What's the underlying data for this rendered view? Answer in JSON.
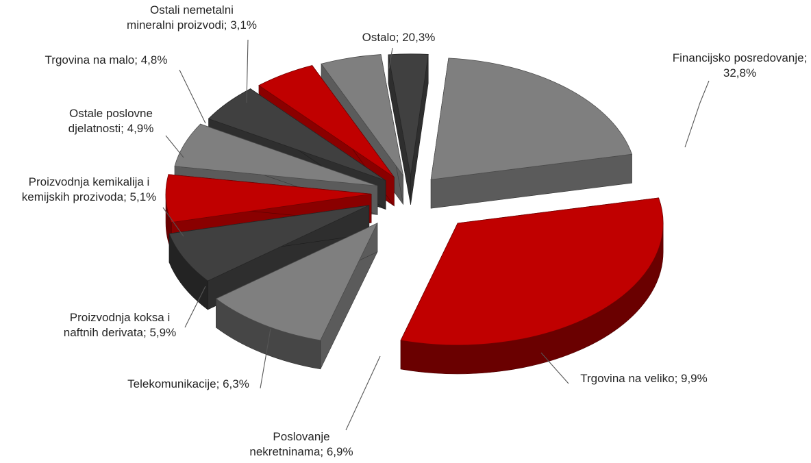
{
  "chart_data": {
    "type": "pie",
    "style": "3d-exploded",
    "title": "",
    "slices": [
      {
        "line1": "Financijsko posredovanje;",
        "line2": "32,8%",
        "value": 32.8,
        "color": "#c00000"
      },
      {
        "line1": "Trgovina na veliko; 9,9%",
        "line2": "",
        "value": 9.9,
        "color": "#7f7f7f"
      },
      {
        "line1": "Poslovanje",
        "line2": "nekretninama; 6,9%",
        "value": 6.9,
        "color": "#404040"
      },
      {
        "line1": "Telekomunikacije; 6,3%",
        "line2": "",
        "value": 6.3,
        "color": "#c00000"
      },
      {
        "line1": "Proizvodnja koksa i",
        "line2": "naftnih derivata; 5,9%",
        "value": 5.9,
        "color": "#7f7f7f"
      },
      {
        "line1": "Proizvodnja kemikalija i",
        "line2": "kemijskih prozivoda; 5,1%",
        "value": 5.1,
        "color": "#404040"
      },
      {
        "line1": "Ostale poslovne",
        "line2": "djelatnosti; 4,9%",
        "value": 4.9,
        "color": "#c00000"
      },
      {
        "line1": "Trgovina na malo; 4,8%",
        "line2": "",
        "value": 4.8,
        "color": "#7f7f7f"
      },
      {
        "line1": "Ostali nemetalni",
        "line2": "mineralni proizvodi; 3,1%",
        "value": 3.1,
        "color": "#404040"
      },
      {
        "line1": "Ostalo; 20,3%",
        "line2": "",
        "value": 20.3,
        "color": "#7f7f7f"
      }
    ]
  }
}
